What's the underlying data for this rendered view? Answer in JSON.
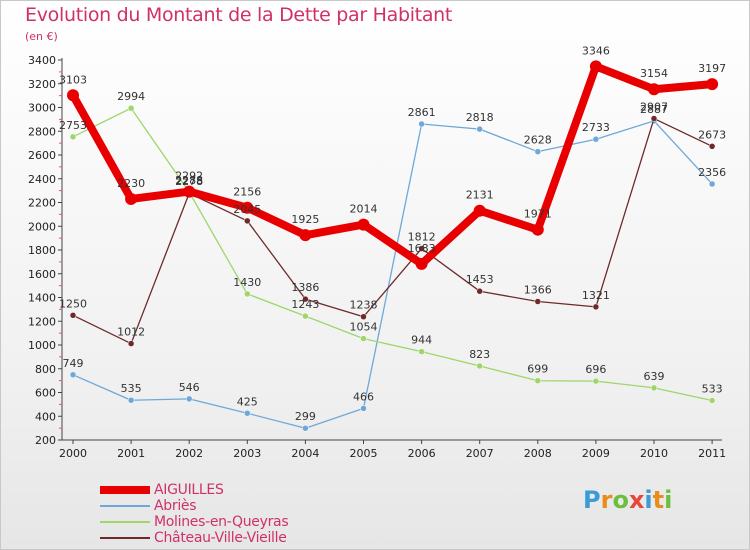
{
  "header": {
    "title": "Evolution du Montant de la Dette par Habitant",
    "subtitle": "(en €)"
  },
  "logo": {
    "letters": [
      {
        "ch": "P",
        "color": "#3a9bd5"
      },
      {
        "ch": "r",
        "color": "#e98c1a"
      },
      {
        "ch": "o",
        "color": "#6cbf3d"
      },
      {
        "ch": "x",
        "color": "#e8463a"
      },
      {
        "ch": "i",
        "color": "#3a9bd5"
      },
      {
        "ch": "t",
        "color": "#e98c1a"
      },
      {
        "ch": "i",
        "color": "#6cbf3d"
      }
    ]
  },
  "chart_data": {
    "type": "line",
    "title": "Evolution du Montant de la Dette par Habitant",
    "subtitle": "(en €)",
    "xlabel": "",
    "ylabel": "",
    "categories": [
      "2000",
      "2001",
      "2002",
      "2003",
      "2004",
      "2005",
      "2006",
      "2007",
      "2008",
      "2009",
      "2010",
      "2011"
    ],
    "ylim": [
      200,
      3400
    ],
    "yticks": [
      200,
      400,
      600,
      800,
      1000,
      1200,
      1400,
      1600,
      1800,
      2000,
      2200,
      2400,
      2600,
      2800,
      3000,
      3200,
      3400
    ],
    "grid": false,
    "legend_position": "bottom-left",
    "series": [
      {
        "name": "AIGUILLES",
        "color": "#e80000",
        "lineWidth": 8,
        "markerR": 6,
        "values": [
          3103,
          2230,
          2292,
          2156,
          1925,
          2014,
          1683,
          2131,
          1971,
          3346,
          3154,
          3197
        ],
        "labels": [
          "3103",
          "2230",
          "2292",
          "2156",
          "1925",
          "2014",
          "1683",
          "2131",
          "1971",
          "3346",
          "3154",
          "3197"
        ]
      },
      {
        "name": "Abriès",
        "color": "#6fa8d8",
        "lineWidth": 1.3,
        "markerR": 3,
        "values": [
          749,
          535,
          546,
          425,
          299,
          466,
          2861,
          2818,
          2628,
          2733,
          2887,
          2356
        ],
        "labels": [
          "749",
          "535",
          "546",
          "425",
          "299",
          "466",
          "2861",
          "2818",
          "2628",
          "2733",
          "2887",
          "2356"
        ]
      },
      {
        "name": "Molines-en-Queyras",
        "color": "#9ed66b",
        "lineWidth": 1.3,
        "markerR": 3,
        "values": [
          2753,
          2994,
          2288,
          1430,
          1243,
          1054,
          944,
          823,
          699,
          696,
          639,
          533
        ],
        "labels": [
          "2753",
          "2994",
          "2288",
          "1430",
          "1243",
          "1054",
          "944",
          "823",
          "699",
          "696",
          "639",
          "533"
        ]
      },
      {
        "name": "Château-Ville-Vieille",
        "color": "#6e2a2a",
        "lineWidth": 1.3,
        "markerR": 3,
        "values": [
          1250,
          1012,
          2278,
          2045,
          1386,
          1238,
          1812,
          1453,
          1366,
          1321,
          2907,
          2673
        ],
        "labels": [
          "1250",
          "1012",
          "2278",
          "2045",
          "1386",
          "1238",
          "1812",
          "1453",
          "1366",
          "1321",
          "2907",
          "2673"
        ]
      }
    ]
  }
}
